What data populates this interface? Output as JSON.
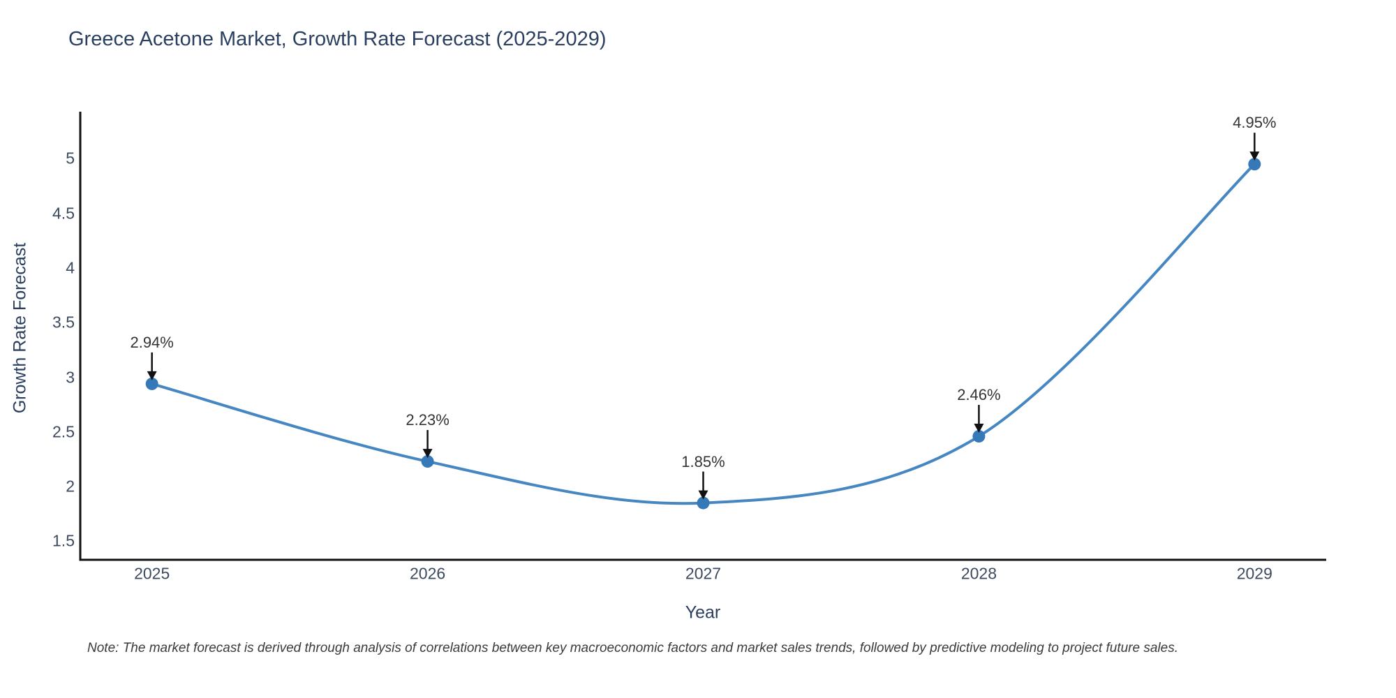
{
  "chart_data": {
    "type": "line",
    "title": "Greece Acetone Market, Growth Rate Forecast (2025-2029)",
    "xlabel": "Year",
    "ylabel": "Growth Rate Forecast",
    "x": [
      2025,
      2026,
      2027,
      2028,
      2029
    ],
    "series": [
      {
        "name": "Growth Rate Forecast",
        "values": [
          2.94,
          2.23,
          1.85,
          2.46,
          4.95
        ],
        "point_labels": [
          "2.94%",
          "2.23%",
          "1.85%",
          "2.46%",
          "4.95%"
        ]
      }
    ],
    "x_tick_labels": [
      "2025",
      "2026",
      "2027",
      "2028",
      "2029"
    ],
    "y_ticks": [
      1.5,
      2,
      2.5,
      3,
      3.5,
      4,
      4.5,
      5
    ],
    "y_tick_labels": [
      "1.5",
      "2",
      "2.5",
      "3",
      "3.5",
      "4",
      "4.5",
      "5"
    ],
    "xlim": [
      2024.74,
      2029.26
    ],
    "ylim": [
      1.33,
      5.43
    ],
    "grid": false,
    "legend": false,
    "line_shape": "spline",
    "colors": {
      "line": "#4687c2",
      "marker": "#3579b8",
      "arrow": "#111111",
      "axis": "#111111",
      "title_text": "#2a3f5f",
      "tick_text": "#3c4a5f"
    }
  },
  "note": "Note: The market forecast is derived through analysis of correlations between key macroeconomic factors and market sales trends, followed by predictive modeling to project future sales."
}
